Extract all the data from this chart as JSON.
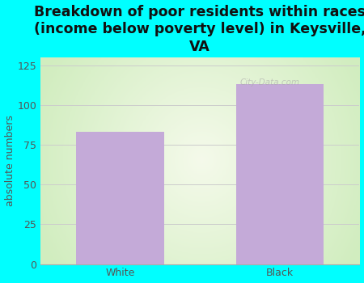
{
  "categories": [
    "White",
    "Black"
  ],
  "values": [
    83,
    113
  ],
  "bar_color": "#c4aad8",
  "title": "Breakdown of poor residents within races\n(income below poverty level) in Keysville,\nVA",
  "ylabel": "absolute numbers",
  "ylim": [
    0,
    130
  ],
  "yticks": [
    0,
    25,
    50,
    75,
    100,
    125
  ],
  "background_color": "#00ffff",
  "plot_bg_color_center": "#f5f5f0",
  "plot_bg_color_edge": "#d0ecc0",
  "title_fontsize": 12.5,
  "axis_fontsize": 9,
  "tick_fontsize": 9,
  "bar_width": 0.55,
  "watermark": "City-Data.com"
}
